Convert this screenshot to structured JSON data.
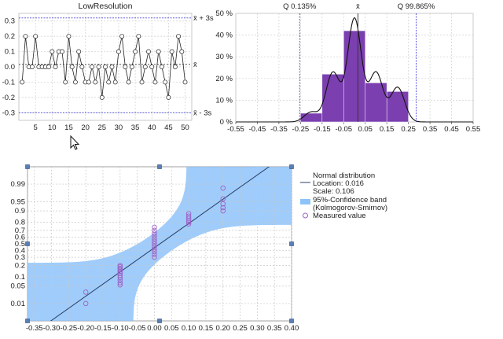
{
  "chart_data": [
    {
      "type": "line",
      "title": "LowResolution",
      "xlim": [
        0,
        52
      ],
      "ylim": [
        -0.35,
        0.35
      ],
      "x_ticks": [
        5,
        10,
        15,
        20,
        25,
        30,
        35,
        40,
        45,
        50
      ],
      "y_ticks": [
        0.3,
        0.2,
        0.1,
        0.0,
        -0.1,
        -0.2,
        -0.3
      ],
      "y_tick_labels": [
        "0.3",
        "0.2",
        "0.1",
        "0.0",
        "-0.1",
        "-0.2",
        "-0.3"
      ],
      "control_limits": {
        "upper": 0.32,
        "center": 0.016,
        "lower": -0.3
      },
      "limit_labels": {
        "upper": "x̄ + 3s",
        "center": "x̄",
        "lower": "x̄ - 3s"
      },
      "values": [
        -0.1,
        0.2,
        0.0,
        0.0,
        0.2,
        0.0,
        0.0,
        0.0,
        0.0,
        0.1,
        0.0,
        0.1,
        0.1,
        -0.1,
        0.2,
        0.0,
        -0.1,
        0.1,
        0.0,
        -0.1,
        -0.1,
        0.0,
        -0.1,
        0.0,
        -0.2,
        0.0,
        -0.1,
        0.0,
        -0.1,
        0.1,
        0.2,
        0.0,
        -0.1,
        0.0,
        0.1,
        0.2,
        -0.1,
        0.0,
        0.1,
        0.0,
        -0.1,
        0.1,
        0.0,
        -0.1,
        -0.2,
        0.1,
        0.0,
        0.2,
        0.1,
        -0.1
      ]
    },
    {
      "type": "bar",
      "xlim": [
        -0.55,
        0.55
      ],
      "ylim": [
        0,
        50
      ],
      "x_ticks": [
        -0.55,
        -0.45,
        -0.35,
        -0.25,
        -0.15,
        -0.05,
        0.05,
        0.15,
        0.25,
        0.35,
        0.45,
        0.55
      ],
      "x_tick_labels": [
        "-0.55",
        "-0.45",
        "-0.35",
        "-0.25",
        "-0.15",
        "-0.05",
        "0.05",
        "0.15",
        "0.25",
        "0.35",
        "0.45",
        "0.55"
      ],
      "y_ticks": [
        0,
        10,
        20,
        30,
        40,
        50
      ],
      "y_tick_labels": [
        "0 %",
        "10 %",
        "20 %",
        "30 %",
        "40 %",
        "50 %"
      ],
      "bins": [
        {
          "from": -0.25,
          "to": -0.15,
          "value": 4
        },
        {
          "from": -0.15,
          "to": -0.05,
          "value": 22
        },
        {
          "from": -0.05,
          "to": 0.05,
          "value": 42
        },
        {
          "from": 0.05,
          "to": 0.15,
          "value": 18
        },
        {
          "from": 0.15,
          "to": 0.25,
          "value": 14
        }
      ],
      "bar_color": "#7b3fb0",
      "markers": [
        {
          "x": -0.254,
          "label": "Q 0.135%"
        },
        {
          "x": 0.016,
          "label": "x̄"
        },
        {
          "x": 0.286,
          "label": "Q 99.865%"
        }
      ]
    },
    {
      "type": "scatter",
      "xlim": [
        -0.37,
        0.4
      ],
      "x_ticks": [
        -0.35,
        -0.3,
        -0.25,
        -0.2,
        -0.15,
        -0.1,
        -0.05,
        0.0,
        0.05,
        0.1,
        0.15,
        0.2,
        0.25,
        0.3,
        0.35,
        0.4
      ],
      "x_tick_labels": [
        "-0.35",
        "-0.30",
        "-0.25",
        "-0.20",
        "-0.15",
        "-0.10",
        "-0.05",
        "0.00",
        "0.05",
        "0.10",
        "0.15",
        "0.20",
        "0.25",
        "0.30",
        "0.35",
        "0.40"
      ],
      "y_ticks": [
        0.99,
        0.95,
        0.9,
        0.8,
        0.7,
        0.6,
        0.5,
        0.4,
        0.3,
        0.2,
        0.1,
        0.05,
        0.01
      ],
      "y_tick_labels": [
        "0.99",
        "0.95",
        "0.9",
        "0.8",
        "0.7",
        "0.6",
        "0.5",
        "0.4",
        "0.3",
        "0.2",
        "0.1",
        "0.05",
        "0.01"
      ],
      "fit": {
        "location": 0.016,
        "scale": 0.106
      },
      "points": [
        {
          "x": -0.2,
          "p": [
            0.01,
            0.03
          ]
        },
        {
          "x": -0.1,
          "p": [
            0.055,
            0.065,
            0.08,
            0.095,
            0.11,
            0.125,
            0.14,
            0.155,
            0.17,
            0.185,
            0.2
          ]
        },
        {
          "x": 0.0,
          "p": [
            0.3,
            0.34,
            0.38,
            0.42,
            0.46,
            0.5,
            0.54,
            0.58,
            0.62,
            0.66,
            0.7,
            0.74
          ]
        },
        {
          "x": 0.1,
          "p": [
            0.78,
            0.8,
            0.82,
            0.84,
            0.86,
            0.88
          ]
        },
        {
          "x": 0.2,
          "p": [
            0.9,
            0.92,
            0.94,
            0.96,
            0.985
          ]
        }
      ],
      "line_color": "#2a3f66",
      "band_color": "#8ec3fa",
      "point_color": "#9b62c8"
    }
  ],
  "legend": {
    "normal_title": "Normal distribution",
    "location": "Location: 0.016",
    "scale": "Scale: 0.106",
    "band_line1": "95%-Confidence band",
    "band_line2": "(Kolmogorov-Smirnov)",
    "measured": "Measured value"
  }
}
